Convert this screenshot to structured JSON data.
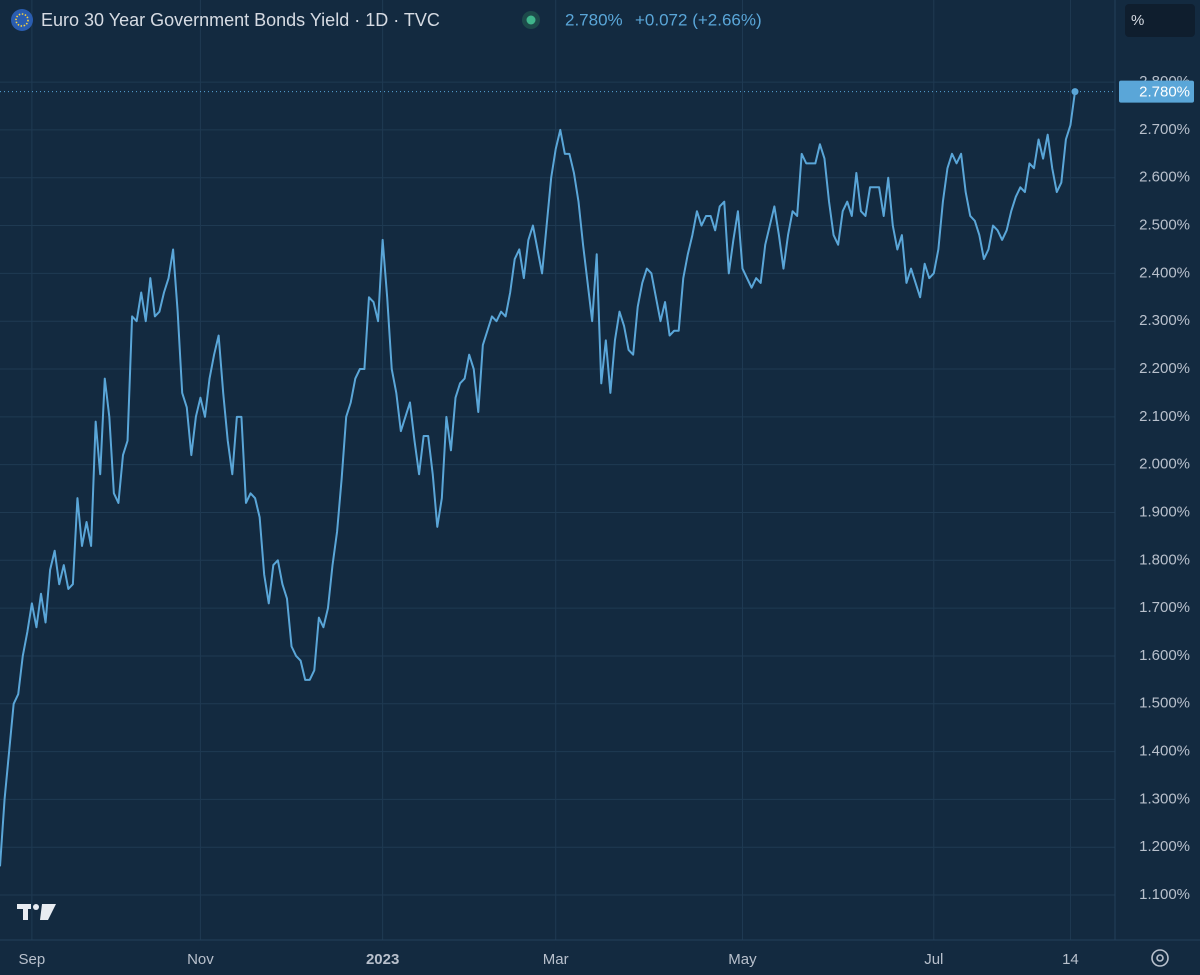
{
  "header": {
    "title": "Euro 30 Year Government Bonds Yield · 1D · TVC",
    "price": "2.780%",
    "change": "+0.072 (+2.66%)",
    "unit_button": "%"
  },
  "chart_data": {
    "type": "line",
    "title": "Euro 30 Year Government Bonds Yield · 1D · TVC",
    "last_label": "2.780%",
    "series": [
      {
        "name": "Euro 30 Year Government Bonds Yield",
        "color": "#5aa6d8",
        "values": [
          1.16,
          1.3,
          1.4,
          1.5,
          1.52,
          1.6,
          1.65,
          1.71,
          1.66,
          1.73,
          1.67,
          1.78,
          1.82,
          1.75,
          1.79,
          1.74,
          1.75,
          1.93,
          1.83,
          1.88,
          1.83,
          2.09,
          1.98,
          2.18,
          2.1,
          1.94,
          1.92,
          2.02,
          2.05,
          2.31,
          2.3,
          2.36,
          2.3,
          2.39,
          2.31,
          2.32,
          2.36,
          2.39,
          2.45,
          2.32,
          2.15,
          2.12,
          2.02,
          2.1,
          2.14,
          2.1,
          2.18,
          2.23,
          2.27,
          2.15,
          2.05,
          1.98,
          2.1,
          2.1,
          1.92,
          1.94,
          1.93,
          1.89,
          1.77,
          1.71,
          1.79,
          1.8,
          1.75,
          1.72,
          1.62,
          1.6,
          1.59,
          1.55,
          1.55,
          1.57,
          1.68,
          1.66,
          1.7,
          1.79,
          1.86,
          1.97,
          2.1,
          2.13,
          2.18,
          2.2,
          2.2,
          2.35,
          2.34,
          2.3,
          2.47,
          2.35,
          2.2,
          2.15,
          2.07,
          2.1,
          2.13,
          2.05,
          1.98,
          2.06,
          2.06,
          1.98,
          1.87,
          1.93,
          2.1,
          2.03,
          2.14,
          2.17,
          2.18,
          2.23,
          2.2,
          2.11,
          2.25,
          2.28,
          2.31,
          2.3,
          2.32,
          2.31,
          2.36,
          2.43,
          2.45,
          2.39,
          2.47,
          2.5,
          2.45,
          2.4,
          2.5,
          2.6,
          2.66,
          2.7,
          2.65,
          2.65,
          2.61,
          2.55,
          2.46,
          2.38,
          2.3,
          2.44,
          2.17,
          2.26,
          2.15,
          2.26,
          2.32,
          2.29,
          2.24,
          2.23,
          2.33,
          2.38,
          2.41,
          2.4,
          2.35,
          2.3,
          2.34,
          2.27,
          2.28,
          2.28,
          2.39,
          2.44,
          2.48,
          2.53,
          2.5,
          2.52,
          2.52,
          2.49,
          2.54,
          2.55,
          2.4,
          2.47,
          2.53,
          2.41,
          2.39,
          2.37,
          2.39,
          2.38,
          2.46,
          2.5,
          2.54,
          2.48,
          2.41,
          2.48,
          2.53,
          2.52,
          2.65,
          2.63,
          2.63,
          2.63,
          2.67,
          2.64,
          2.55,
          2.48,
          2.46,
          2.53,
          2.55,
          2.52,
          2.61,
          2.53,
          2.52,
          2.58,
          2.58,
          2.58,
          2.52,
          2.6,
          2.5,
          2.45,
          2.48,
          2.38,
          2.41,
          2.38,
          2.35,
          2.42,
          2.39,
          2.4,
          2.45,
          2.55,
          2.62,
          2.65,
          2.63,
          2.65,
          2.57,
          2.52,
          2.51,
          2.48,
          2.43,
          2.45,
          2.5,
          2.49,
          2.47,
          2.49,
          2.53,
          2.56,
          2.58,
          2.57,
          2.63,
          2.62,
          2.68,
          2.64,
          2.69,
          2.62,
          2.57,
          2.59,
          2.68,
          2.71,
          2.78
        ]
      }
    ],
    "ylim": [
      1.006,
      2.888
    ],
    "yticks": [
      {
        "value": 1.1,
        "label": "1.100%"
      },
      {
        "value": 1.2,
        "label": "1.200%"
      },
      {
        "value": 1.3,
        "label": "1.300%"
      },
      {
        "value": 1.4,
        "label": "1.400%"
      },
      {
        "value": 1.5,
        "label": "1.500%"
      },
      {
        "value": 1.6,
        "label": "1.600%"
      },
      {
        "value": 1.7,
        "label": "1.700%"
      },
      {
        "value": 1.8,
        "label": "1.800%"
      },
      {
        "value": 1.9,
        "label": "1.900%"
      },
      {
        "value": 2.0,
        "label": "2.000%"
      },
      {
        "value": 2.1,
        "label": "2.100%"
      },
      {
        "value": 2.2,
        "label": "2.200%"
      },
      {
        "value": 2.3,
        "label": "2.300%"
      },
      {
        "value": 2.4,
        "label": "2.400%"
      },
      {
        "value": 2.5,
        "label": "2.500%"
      },
      {
        "value": 2.6,
        "label": "2.600%"
      },
      {
        "value": 2.7,
        "label": "2.700%"
      },
      {
        "value": 2.8,
        "label": "2.800%"
      }
    ],
    "xticks": [
      {
        "value": 7,
        "label": "Sep"
      },
      {
        "value": 44,
        "label": "Nov"
      },
      {
        "value": 84,
        "label": "2023"
      },
      {
        "value": 122,
        "label": "Mar"
      },
      {
        "value": 163,
        "label": "May"
      },
      {
        "value": 205,
        "label": "Jul"
      },
      {
        "value": 235,
        "label": "14"
      }
    ],
    "grid": true
  }
}
